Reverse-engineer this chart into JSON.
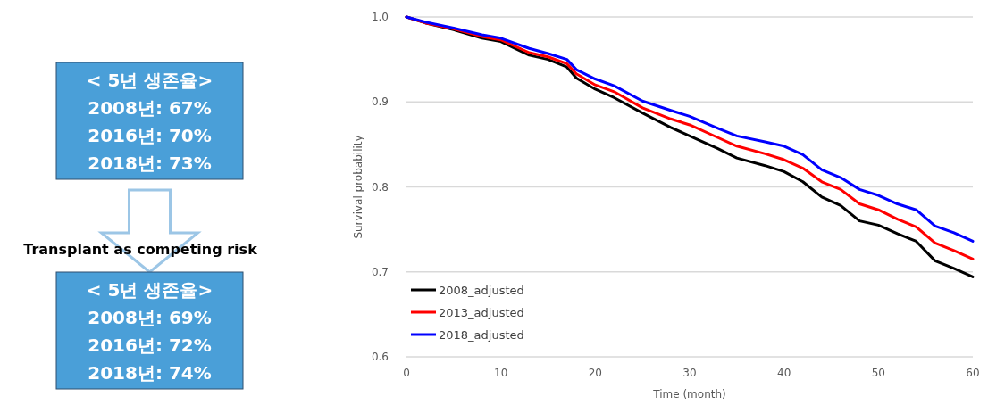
{
  "chart_data": [
    {
      "type": "other",
      "annotations": [
        "< 5년 생존율>\n2008년: 67%\n2016년: 70%\n2018년: 73%",
        "Transplant as competing risk",
        "< 5년 생존율>\n2008년: 69%\n2016년: 72%\n2018년: 74%"
      ]
    },
    {
      "type": "line",
      "xlabel": "Time (month)",
      "ylabel": "Survival probability",
      "x": [
        0,
        2,
        5,
        8,
        10,
        13,
        15,
        17,
        18,
        20,
        22,
        25,
        28,
        30,
        33,
        35,
        38,
        40,
        42,
        44,
        46,
        48,
        50,
        52,
        54,
        56,
        58,
        60
      ],
      "series": [
        {
          "name": "2008_adjusted",
          "color": "#000000",
          "values": [
            1.0,
            0.993,
            0.985,
            0.975,
            0.971,
            0.955,
            0.95,
            0.941,
            0.928,
            0.915,
            0.905,
            0.887,
            0.87,
            0.86,
            0.845,
            0.834,
            0.825,
            0.818,
            0.806,
            0.788,
            0.778,
            0.76,
            0.755,
            0.745,
            0.736,
            0.713,
            0.704,
            0.694
          ]
        },
        {
          "name": "2013_adjusted",
          "color": "#ff0000",
          "values": [
            1.0,
            0.993,
            0.986,
            0.977,
            0.973,
            0.958,
            0.953,
            0.945,
            0.933,
            0.92,
            0.912,
            0.893,
            0.88,
            0.873,
            0.858,
            0.848,
            0.839,
            0.832,
            0.822,
            0.806,
            0.797,
            0.78,
            0.773,
            0.762,
            0.753,
            0.734,
            0.725,
            0.715
          ]
        },
        {
          "name": "2018_adjusted",
          "color": "#0000ff",
          "values": [
            1.0,
            0.994,
            0.987,
            0.979,
            0.975,
            0.963,
            0.957,
            0.95,
            0.938,
            0.927,
            0.919,
            0.901,
            0.89,
            0.883,
            0.869,
            0.86,
            0.853,
            0.848,
            0.838,
            0.82,
            0.811,
            0.797,
            0.79,
            0.78,
            0.773,
            0.754,
            0.746,
            0.736
          ]
        }
      ],
      "xlim": [
        0,
        60
      ],
      "xticks": [
        0,
        10,
        20,
        30,
        40,
        50,
        60
      ],
      "ylim": [
        0.6,
        1.0
      ],
      "yticks": [
        {
          "value": 0.6,
          "label": "0.6"
        },
        {
          "value": 0.7,
          "label": "0.7"
        },
        {
          "value": 0.8,
          "label": "0.8"
        },
        {
          "value": 0.9,
          "label": "0.9"
        },
        {
          "value": 1.0,
          "label": "1.0"
        }
      ],
      "grid": "y",
      "legend": "bottom left",
      "line_style": "solid",
      "marker": "none"
    }
  ]
}
